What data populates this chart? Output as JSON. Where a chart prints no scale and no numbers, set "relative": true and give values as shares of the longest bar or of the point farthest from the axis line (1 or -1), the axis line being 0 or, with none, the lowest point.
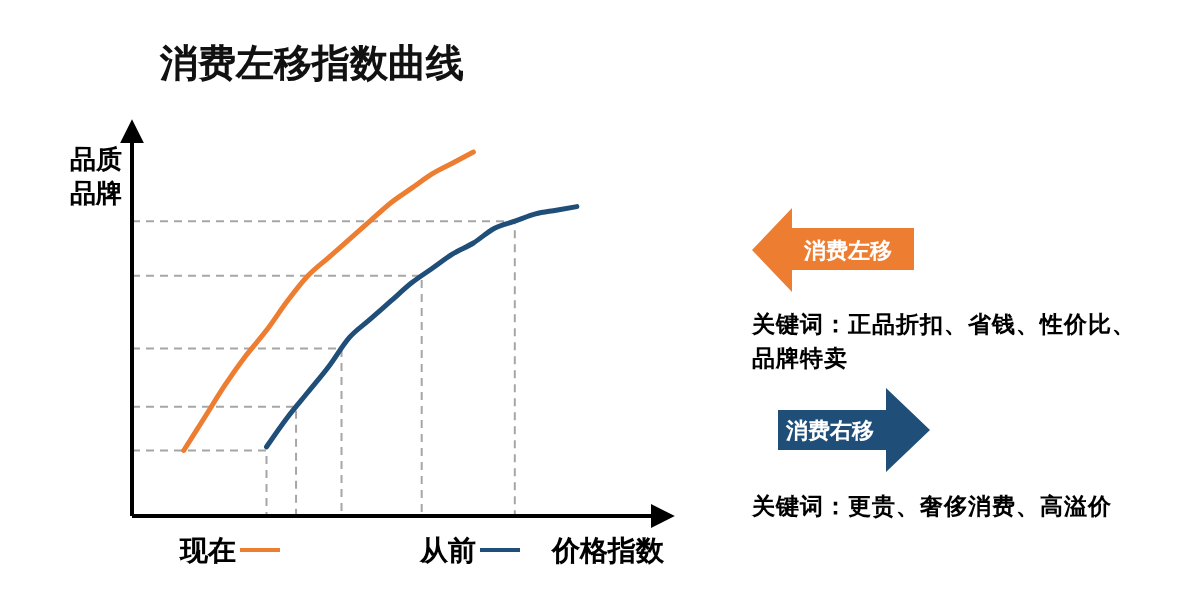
{
  "chart_data": {
    "type": "line",
    "title": "消费左移指数曲线",
    "xlabel": "价格指数",
    "ylabel": "品质品牌",
    "relative": true,
    "legend": "bottom",
    "line_style": "solid",
    "categories": [
      null,
      null,
      null,
      null,
      null,
      null,
      null,
      null,
      null,
      null,
      null,
      null,
      null,
      null,
      null,
      null,
      null,
      null,
      null,
      null,
      null,
      null,
      null,
      null,
      null,
      null
    ],
    "series": [
      {
        "name": "现在",
        "color": "#ed7d31",
        "values": [
          null,
          null,
          0.18,
          0.27,
          0.36,
          0.44,
          0.51,
          0.59,
          0.66,
          0.71,
          0.76,
          0.81,
          0.86,
          0.9,
          0.94,
          0.97,
          1,
          null,
          null,
          null,
          null,
          null,
          null,
          null,
          null,
          null
        ]
      },
      {
        "name": "从前",
        "color": "#1f4e79",
        "values": [
          null,
          null,
          null,
          null,
          null,
          null,
          0.19,
          0.27,
          0.34,
          0.41,
          0.49,
          0.54,
          0.59,
          0.64,
          0.68,
          0.72,
          0.75,
          0.79,
          0.81,
          0.83,
          0.84,
          0.85,
          null,
          null,
          null,
          null
        ]
      }
    ],
    "ref_lines": [
      {
        "axis": "y",
        "value": 0.18,
        "color": "#a6a6a6",
        "line_style": "dashed"
      },
      {
        "axis": "y",
        "value": 0.3,
        "color": "#a6a6a6",
        "line_style": "dashed"
      },
      {
        "axis": "y",
        "value": 0.46,
        "color": "#a6a6a6",
        "line_style": "dashed"
      },
      {
        "axis": "y",
        "value": 0.66,
        "color": "#a6a6a6",
        "line_style": "dashed"
      },
      {
        "axis": "y",
        "value": 0.81,
        "color": "#a6a6a6",
        "line_style": "dashed"
      }
    ],
    "annotations": [
      "消费左移",
      "关键词：正品折扣、省钱、性价比、品牌特卖",
      "消费右移",
      "关键词：更贵、奢侈消费、高溢价"
    ]
  }
}
